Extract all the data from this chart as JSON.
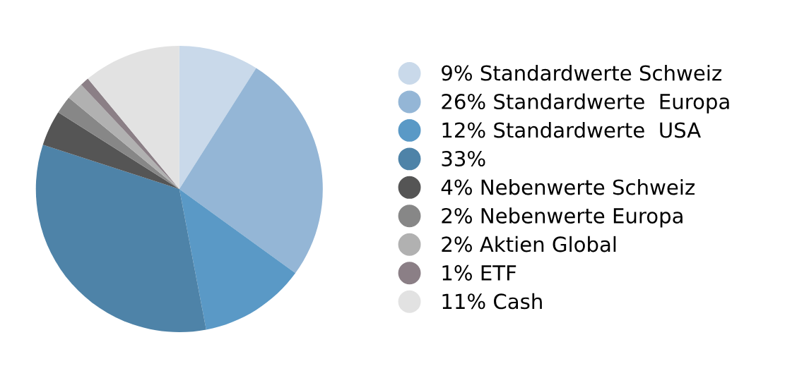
{
  "chart_data": {
    "type": "pie",
    "categories": [
      "9% Standardwerte Schweiz",
      "26% Standardwerte  Europa",
      "12% Standardwerte  USA",
      "33%",
      "4% Nebenwerte Schweiz",
      "2% Nebenwerte Europa",
      "2% Aktien Global",
      "1% ETF",
      "11% Cash"
    ],
    "values": [
      9,
      26,
      12,
      33,
      4,
      2,
      2,
      1,
      11
    ],
    "colors": [
      "#c9d9ea",
      "#94b6d6",
      "#5a99c6",
      "#4e83a8",
      "#555555",
      "#878787",
      "#b1b1b1",
      "#8b7f86",
      "#e2e2e2"
    ],
    "legend": "right"
  }
}
